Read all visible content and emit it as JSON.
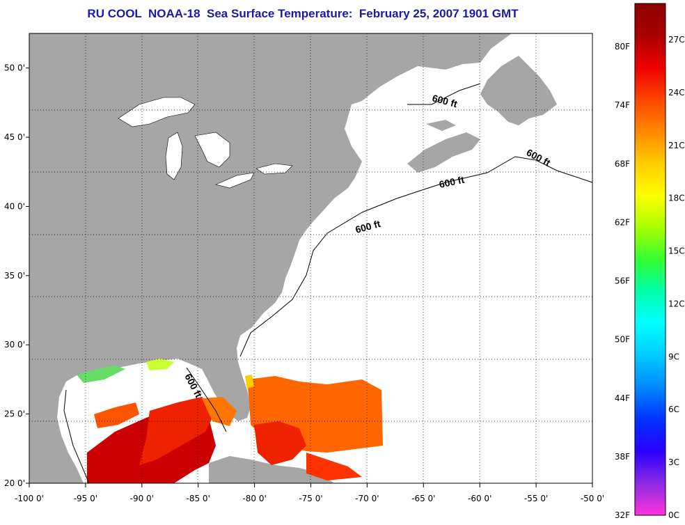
{
  "title": "RU COOL  NOAA-18  Sea Surface Temperature:  February 25, 2007 1901 GMT",
  "map": {
    "longitude_ticks": [
      "-100 0'",
      "-95 0'",
      "-90 0'",
      "-85 0'",
      "-80 0'",
      "-75 0'",
      "-70 0'",
      "-65 0'",
      "-60 0'",
      "-55 0'",
      "-50 0'"
    ],
    "latitude_ticks": [
      "20 0'",
      "25 0'",
      "30 0'",
      "35 0'",
      "40 0'",
      "45 0'",
      "50 0'"
    ],
    "lon_range": [
      -100,
      -50
    ],
    "lat_range": [
      20,
      52.5
    ],
    "contour_labels": [
      "600 ft",
      "600 ft",
      "600 ft",
      "600 ft",
      "600 ft"
    ],
    "colors": {
      "land": "#a6a6a6",
      "ocean_no_data": "#ffffff",
      "title": "#1a1aa8"
    }
  },
  "colorbar": {
    "fahrenheit_labels": [
      "80F",
      "74F",
      "68F",
      "62F",
      "56F",
      "50F",
      "44F",
      "38F",
      "32F"
    ],
    "celsius_labels": [
      "27C",
      "24C",
      "21C",
      "18C",
      "15C",
      "12C",
      "9C",
      "6C",
      "3C",
      "0C"
    ],
    "stops": [
      "#ff33dd",
      "#8a2be2",
      "#2a00ff",
      "#0033ff",
      "#0088ff",
      "#00ccff",
      "#00ffff",
      "#00ffaa",
      "#33ff33",
      "#aaff00",
      "#ffff00",
      "#ffcc00",
      "#ff8800",
      "#ff4400",
      "#ee0000",
      "#aa0000",
      "#8b0000"
    ]
  }
}
